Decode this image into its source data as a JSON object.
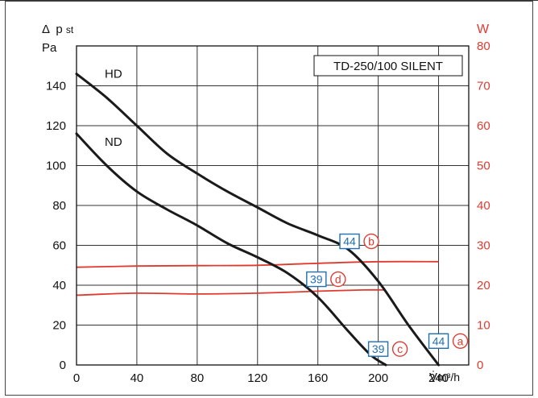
{
  "colors": {
    "curve": "#1a1a1a",
    "power": "#e03a2f",
    "badge": "#1f6fb5",
    "grid": "#333333",
    "axis_right": "#e03a2f"
  },
  "chart_data": {
    "type": "line",
    "model_label": "TD-250/100 SILENT",
    "ylabel_left_symbol": "Δ",
    "ylabel_left_main": "p",
    "ylabel_left_sub": "st",
    "ylabel_left_unit": "Pa",
    "ylabel_right": "W",
    "xlabel_symbol": "V̇",
    "xlabel_unit": "m³/h",
    "xlim": [
      0,
      260
    ],
    "ylim_left": [
      0,
      160
    ],
    "ylim_right": [
      0,
      80
    ],
    "x_ticks": [
      0,
      40,
      80,
      120,
      160,
      200,
      240
    ],
    "x_tick_labels": [
      "0",
      "40",
      "80",
      "120",
      "160",
      "200",
      "240"
    ],
    "y_ticks_left": [
      0,
      20,
      40,
      60,
      80,
      100,
      120,
      140
    ],
    "y_tick_labels_left": [
      "0",
      "20",
      "40",
      "60",
      "80",
      "100",
      "120",
      "140"
    ],
    "y_ticks_right": [
      0,
      10,
      20,
      30,
      40,
      50,
      60,
      70,
      80
    ],
    "y_tick_labels_right": [
      "0",
      "10",
      "20",
      "30",
      "40",
      "50",
      "60",
      "70",
      "80"
    ],
    "grid": true,
    "pressure_series": [
      {
        "name": "HD",
        "label_x": 8,
        "label_y": 146,
        "x": [
          0,
          20,
          40,
          60,
          80,
          100,
          120,
          140,
          160,
          180,
          200,
          220,
          240
        ],
        "y": [
          146,
          134,
          120,
          106,
          96,
          87,
          79,
          71,
          65,
          58,
          42,
          20,
          0
        ]
      },
      {
        "name": "ND",
        "label_x": 8,
        "label_y": 112,
        "x": [
          0,
          20,
          40,
          60,
          80,
          100,
          120,
          140,
          160,
          180,
          195,
          205
        ],
        "y": [
          116,
          100,
          87,
          78,
          70,
          61,
          54,
          46,
          34,
          17,
          5,
          0
        ]
      }
    ],
    "power_series": [
      {
        "x": [
          0,
          40,
          80,
          120,
          160,
          200,
          240
        ],
        "y": [
          24.5,
          24.8,
          24.9,
          25.0,
          25.5,
          25.9,
          25.9
        ]
      },
      {
        "x": [
          0,
          40,
          80,
          120,
          160,
          190,
          205
        ],
        "y": [
          17.5,
          18.0,
          17.8,
          18.0,
          18.5,
          18.8,
          18.8
        ]
      }
    ],
    "annotations": [
      {
        "badge": "44",
        "letter": "b",
        "x": 181,
        "y": 62
      },
      {
        "badge": "39",
        "letter": "d",
        "x": 159,
        "y": 43
      },
      {
        "badge": "39",
        "letter": "c",
        "x": 200,
        "y": 8
      },
      {
        "badge": "44",
        "letter": "a",
        "x": 240,
        "y": 12
      }
    ]
  }
}
